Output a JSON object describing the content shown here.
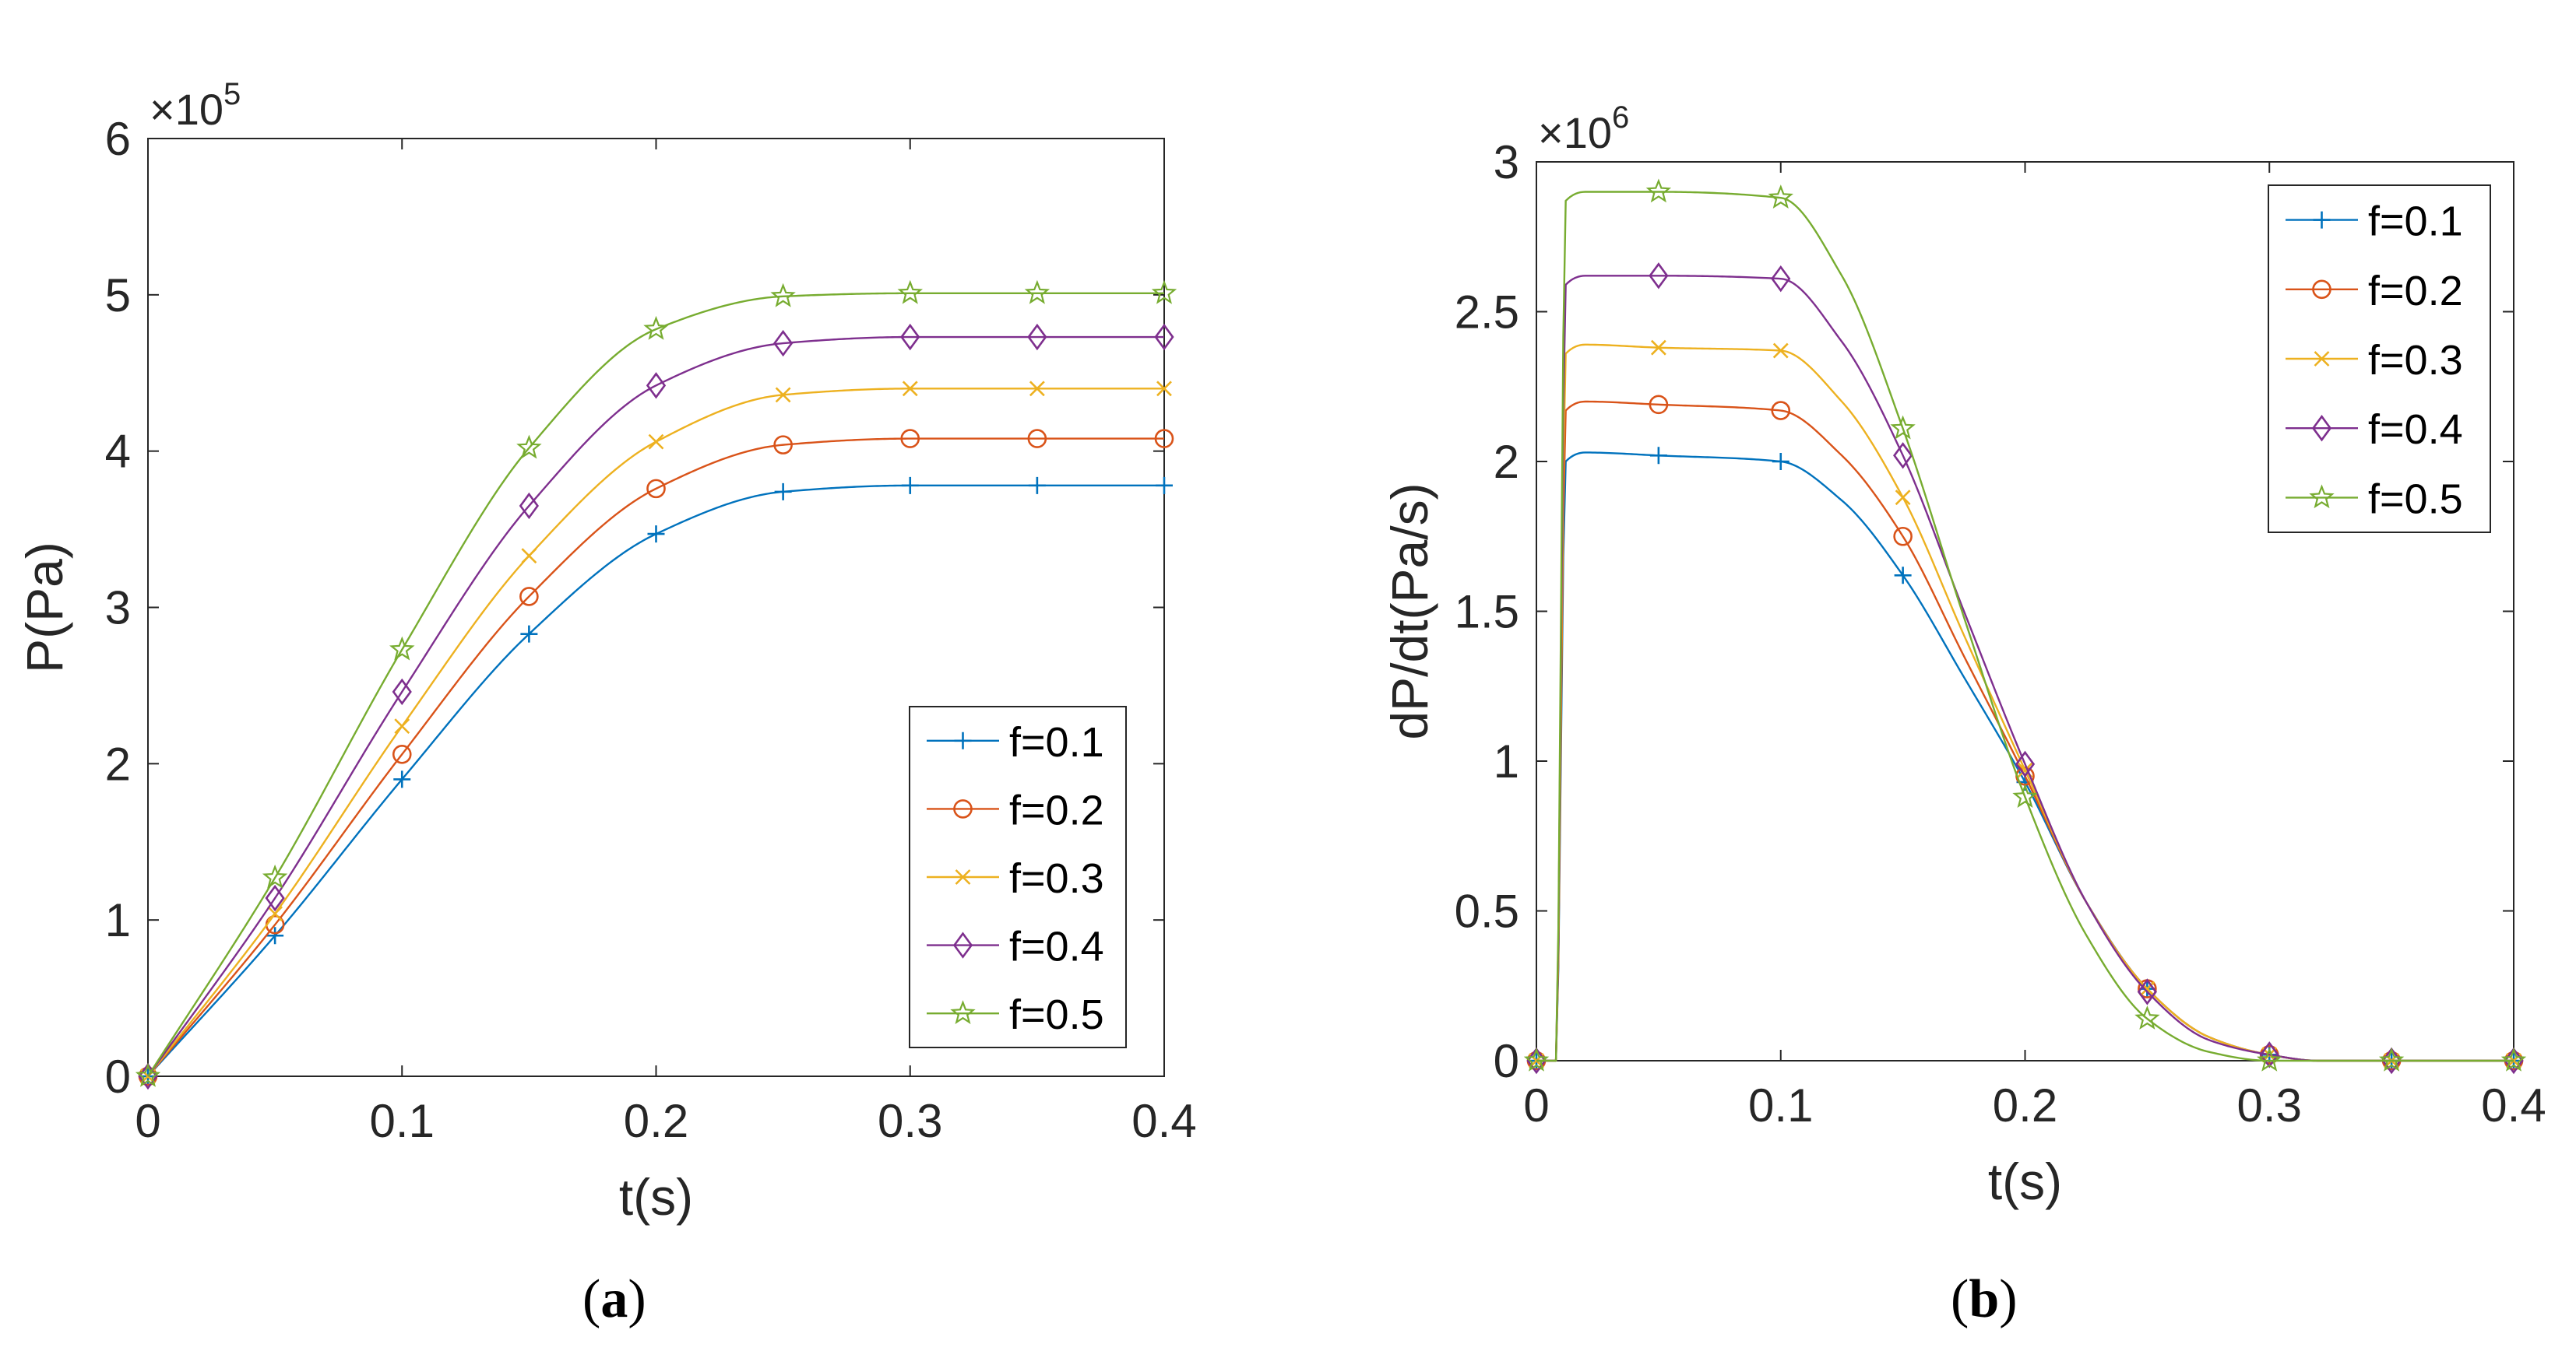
{
  "chart_data": [
    {
      "type": "line",
      "panel": "a",
      "caption": "a",
      "xlabel": "t(s)",
      "ylabel": "P(Pa)",
      "y_multiplier": "×10",
      "y_exponent": "5",
      "xlim": [
        0,
        0.4
      ],
      "ylim": [
        0,
        6
      ],
      "xticks": [
        0,
        0.1,
        0.2,
        0.3,
        0.4
      ],
      "yticks": [
        0,
        1,
        2,
        3,
        4,
        5,
        6
      ],
      "xtick_labels": [
        "0",
        "0.1",
        "0.2",
        "0.3",
        "0.4"
      ],
      "ytick_labels": [
        "0",
        "1",
        "2",
        "3",
        "4",
        "5",
        "6"
      ],
      "legend_position": "bottom-right",
      "marker_x": [
        0,
        0.05,
        0.1,
        0.15,
        0.2,
        0.25,
        0.3,
        0.35,
        0.4
      ],
      "series": [
        {
          "name": "f=0.1",
          "color": "#0072BD",
          "marker": "plus",
          "x": [
            0,
            0.05,
            0.1,
            0.15,
            0.2,
            0.25,
            0.3,
            0.35,
            0.4
          ],
          "values": [
            0,
            0.9,
            1.9,
            2.83,
            3.47,
            3.74,
            3.78,
            3.78,
            3.78
          ]
        },
        {
          "name": "f=0.2",
          "color": "#D95319",
          "marker": "circle",
          "x": [
            0,
            0.05,
            0.1,
            0.15,
            0.2,
            0.25,
            0.3,
            0.35,
            0.4
          ],
          "values": [
            0,
            0.97,
            2.06,
            3.07,
            3.76,
            4.04,
            4.08,
            4.08,
            4.08
          ]
        },
        {
          "name": "f=0.3",
          "color": "#EDB120",
          "marker": "x",
          "x": [
            0,
            0.05,
            0.1,
            0.15,
            0.2,
            0.25,
            0.3,
            0.35,
            0.4
          ],
          "values": [
            0,
            1.04,
            2.24,
            3.33,
            4.06,
            4.36,
            4.4,
            4.4,
            4.4
          ]
        },
        {
          "name": "f=0.4",
          "color": "#7E2F8E",
          "marker": "diamond",
          "x": [
            0,
            0.05,
            0.1,
            0.15,
            0.2,
            0.25,
            0.3,
            0.35,
            0.4
          ],
          "values": [
            0,
            1.14,
            2.46,
            3.65,
            4.42,
            4.69,
            4.73,
            4.73,
            4.73
          ]
        },
        {
          "name": "f=0.5",
          "color": "#77AC30",
          "marker": "star",
          "x": [
            0,
            0.05,
            0.1,
            0.15,
            0.2,
            0.25,
            0.3,
            0.35,
            0.4
          ],
          "values": [
            0,
            1.27,
            2.73,
            4.02,
            4.78,
            4.99,
            5.01,
            5.01,
            5.01
          ]
        }
      ]
    },
    {
      "type": "line",
      "panel": "b",
      "caption": "b",
      "xlabel": "t(s)",
      "ylabel": "dP/dt(Pa/s)",
      "y_multiplier": "×10",
      "y_exponent": "6",
      "xlim": [
        0,
        0.4
      ],
      "ylim": [
        0,
        3
      ],
      "xticks": [
        0,
        0.1,
        0.2,
        0.3,
        0.4
      ],
      "yticks": [
        0,
        0.5,
        1,
        1.5,
        2,
        2.5,
        3
      ],
      "xtick_labels": [
        "0",
        "0.1",
        "0.2",
        "0.3",
        "0.4"
      ],
      "ytick_labels": [
        "0",
        "0.5",
        "1",
        "1.5",
        "2",
        "2.5",
        "3"
      ],
      "legend_position": "top-right",
      "marker_x": [
        0,
        0.05,
        0.1,
        0.15,
        0.2,
        0.25,
        0.3,
        0.35,
        0.4
      ],
      "series": [
        {
          "name": "f=0.1",
          "color": "#0072BD",
          "marker": "plus",
          "x": [
            0,
            0.008,
            0.012,
            0.02,
            0.05,
            0.1,
            0.125,
            0.15,
            0.175,
            0.2,
            0.225,
            0.25,
            0.275,
            0.3,
            0.32,
            0.35,
            0.4
          ],
          "values": [
            0,
            0,
            2.0,
            2.03,
            2.02,
            2.0,
            1.87,
            1.62,
            1.28,
            0.93,
            0.53,
            0.24,
            0.08,
            0.02,
            0.0,
            0.0,
            0.0
          ]
        },
        {
          "name": "f=0.2",
          "color": "#D95319",
          "marker": "circle",
          "x": [
            0,
            0.008,
            0.012,
            0.02,
            0.05,
            0.1,
            0.125,
            0.15,
            0.175,
            0.2,
            0.225,
            0.25,
            0.275,
            0.3,
            0.32,
            0.35,
            0.4
          ],
          "values": [
            0,
            0,
            2.17,
            2.2,
            2.19,
            2.17,
            2.02,
            1.75,
            1.35,
            0.95,
            0.53,
            0.24,
            0.08,
            0.02,
            0.0,
            0.0,
            0.0
          ]
        },
        {
          "name": "f=0.3",
          "color": "#EDB120",
          "marker": "x",
          "x": [
            0,
            0.008,
            0.012,
            0.02,
            0.05,
            0.1,
            0.125,
            0.15,
            0.175,
            0.2,
            0.225,
            0.25,
            0.275,
            0.3,
            0.32,
            0.35,
            0.4
          ],
          "values": [
            0,
            0,
            2.36,
            2.39,
            2.38,
            2.37,
            2.2,
            1.88,
            1.42,
            0.97,
            0.53,
            0.24,
            0.08,
            0.02,
            0.0,
            0.0,
            0.0
          ]
        },
        {
          "name": "f=0.4",
          "color": "#7E2F8E",
          "marker": "diamond",
          "x": [
            0,
            0.008,
            0.012,
            0.02,
            0.05,
            0.1,
            0.125,
            0.15,
            0.175,
            0.2,
            0.225,
            0.25,
            0.275,
            0.3,
            0.32,
            0.35,
            0.4
          ],
          "values": [
            0,
            0,
            2.59,
            2.62,
            2.62,
            2.61,
            2.4,
            2.02,
            1.5,
            0.99,
            0.53,
            0.23,
            0.07,
            0.02,
            0.0,
            0.0,
            0.0
          ]
        },
        {
          "name": "f=0.5",
          "color": "#77AC30",
          "marker": "star",
          "x": [
            0,
            0.008,
            0.012,
            0.02,
            0.05,
            0.1,
            0.125,
            0.15,
            0.175,
            0.2,
            0.225,
            0.25,
            0.275,
            0.3,
            0.32,
            0.35,
            0.4
          ],
          "values": [
            0,
            0,
            2.87,
            2.9,
            2.9,
            2.88,
            2.62,
            2.11,
            1.48,
            0.88,
            0.42,
            0.14,
            0.03,
            0.0,
            0.0,
            0.0,
            0.0
          ]
        }
      ]
    }
  ]
}
